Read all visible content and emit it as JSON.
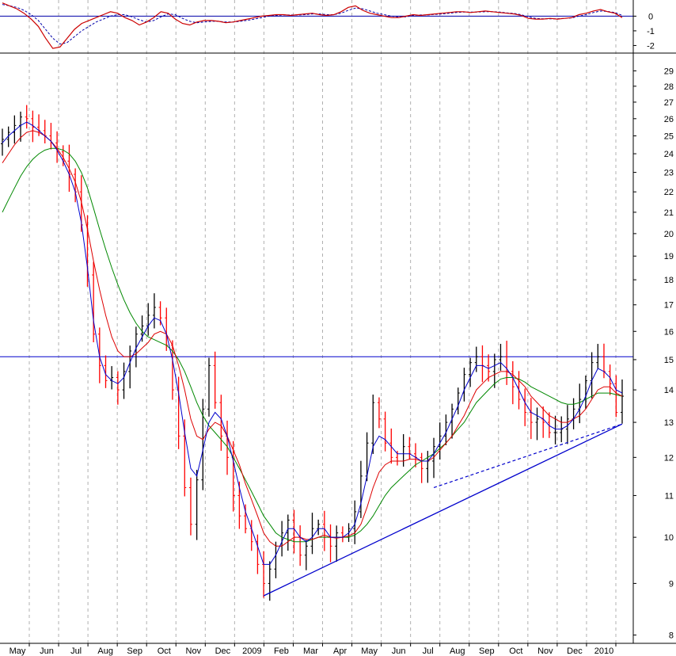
{
  "chart_data": [
    {
      "panel": "oscillator",
      "type": "line",
      "yticks": [
        "0",
        "-1",
        "-2"
      ],
      "ytick_values": [
        0,
        -1,
        -2
      ],
      "ylim": [
        -2.3,
        1.1
      ],
      "zero_line": 0,
      "grid": true,
      "colors": {
        "signal": "#cc0000",
        "trigger": "#0000aa",
        "zero": "#0000aa"
      },
      "series": [
        {
          "values": [
            0.9,
            0.7,
            0.5,
            0.2,
            -0.2,
            -0.7,
            -1.5,
            -2.2,
            -2.1,
            -1.5,
            -0.9,
            -0.5,
            -0.3,
            -0.1,
            0.1,
            0.3,
            0.2,
            -0.1,
            -0.3,
            -0.6,
            -0.4,
            -0.1,
            0.3,
            0.2,
            -0.2,
            -0.5,
            -0.6,
            -0.4,
            -0.3,
            -0.3,
            -0.35,
            -0.45,
            -0.4,
            -0.3,
            -0.2,
            -0.1,
            0.0,
            0.05,
            0.1,
            0.1,
            0.05,
            0.1,
            0.15,
            0.2,
            0.1,
            0.05,
            0.1,
            0.3,
            0.6,
            0.7,
            0.4,
            0.2,
            0.1,
            0.0,
            -0.1,
            -0.1,
            0.0,
            0.1,
            0.05,
            0.1,
            0.15,
            0.2,
            0.25,
            0.3,
            0.3,
            0.25,
            0.3,
            0.35,
            0.3,
            0.25,
            0.2,
            0.15,
            0.05,
            -0.15,
            -0.2,
            -0.2,
            -0.15,
            -0.2,
            -0.15,
            -0.1,
            0.1,
            0.2,
            0.35,
            0.45,
            0.3,
            0.2,
            -0.1
          ]
        },
        {
          "values": [
            0.8,
            0.7,
            0.6,
            0.4,
            0.1,
            -0.3,
            -0.9,
            -1.5,
            -1.9,
            -1.8,
            -1.4,
            -1.0,
            -0.7,
            -0.4,
            -0.2,
            0.0,
            0.1,
            0.1,
            -0.05,
            -0.25,
            -0.4,
            -0.3,
            -0.05,
            0.15,
            0.1,
            -0.15,
            -0.35,
            -0.45,
            -0.4,
            -0.35,
            -0.35,
            -0.4,
            -0.4,
            -0.35,
            -0.28,
            -0.2,
            -0.1,
            0.0,
            0.05,
            0.08,
            0.08,
            0.08,
            0.1,
            0.15,
            0.15,
            0.1,
            0.1,
            0.2,
            0.4,
            0.55,
            0.5,
            0.35,
            0.2,
            0.1,
            0.0,
            -0.05,
            -0.05,
            0.05,
            0.08,
            0.08,
            0.12,
            0.15,
            0.2,
            0.25,
            0.28,
            0.28,
            0.28,
            0.3,
            0.3,
            0.28,
            0.22,
            0.18,
            0.1,
            -0.05,
            -0.15,
            -0.18,
            -0.18,
            -0.18,
            -0.15,
            -0.12,
            0.0,
            0.1,
            0.25,
            0.35,
            0.32,
            0.25,
            0.05
          ]
        }
      ]
    },
    {
      "panel": "price",
      "type": "candlestick",
      "scale": "log",
      "ylim": [
        7.85,
        30.2
      ],
      "yticks": [
        "29",
        "28",
        "27",
        "26",
        "25",
        "24",
        "23",
        "22",
        "21",
        "20",
        "19",
        "18",
        "17",
        "16",
        "15",
        "14",
        "13",
        "12",
        "11",
        "10",
        "9",
        "8"
      ],
      "ytick_values": [
        29,
        28,
        27,
        26,
        25,
        24,
        23,
        22,
        21,
        20,
        19,
        18,
        17,
        16,
        15,
        14,
        13,
        12,
        11,
        10,
        9,
        8
      ],
      "xticks": [
        "May",
        "Jun",
        "Jul",
        "Aug",
        "Sep",
        "Oct",
        "Nov",
        "Dec",
        "2009",
        "Feb",
        "Mar",
        "Apr",
        "May",
        "Jun",
        "Jul",
        "Aug",
        "Sep",
        "Oct",
        "Nov",
        "Dec",
        "2010"
      ],
      "grid": "vertical dashed",
      "colors": {
        "up": "#000000",
        "down": "#ff0000",
        "ma_short": "#0000cc",
        "ma_mid": "#dd0000",
        "ma_long": "#008800",
        "lines": "#0000cc"
      },
      "close": [
        24.8,
        25.2,
        25.6,
        26.1,
        26.0,
        25.5,
        25.3,
        25.0,
        24.6,
        24.1,
        23.6,
        22.9,
        22.0,
        20.4,
        18.2,
        15.9,
        14.8,
        14.3,
        14.4,
        14.0,
        14.6,
        15.3,
        15.9,
        16.2,
        16.6,
        16.9,
        16.5,
        15.5,
        14.0,
        12.6,
        11.2,
        10.3,
        11.4,
        13.4,
        14.8,
        13.6,
        12.6,
        12.0,
        11.0,
        10.5,
        10.2,
        9.9,
        9.4,
        9.0,
        9.3,
        9.8,
        10.1,
        10.4,
        10.0,
        9.6,
        9.8,
        10.2,
        10.3,
        10.0,
        9.8,
        10.1,
        10.0,
        10.2,
        10.6,
        11.5,
        12.4,
        13.6,
        13.1,
        12.4,
        12.0,
        11.9,
        12.3,
        12.1,
        12.0,
        11.7,
        11.9,
        12.3,
        12.6,
        13.0,
        13.4,
        13.9,
        14.5,
        14.9,
        15.1,
        14.8,
        14.6,
        15.0,
        15.1,
        14.6,
        14.1,
        13.7,
        13.3,
        13.0,
        13.1,
        13.0,
        12.7,
        12.7,
        12.8,
        13.1,
        13.4,
        13.7,
        14.3,
        14.9,
        15.1,
        14.6,
        14.2,
        13.3,
        13.8
      ],
      "ma_short": [
        24.6,
        25.0,
        25.3,
        25.6,
        25.8,
        25.6,
        25.3,
        25.0,
        24.7,
        24.2,
        23.6,
        22.9,
        22.0,
        20.5,
        18.5,
        16.4,
        15.1,
        14.5,
        14.3,
        14.2,
        14.4,
        14.9,
        15.4,
        15.8,
        16.2,
        16.5,
        16.4,
        15.9,
        15.0,
        13.9,
        12.7,
        11.7,
        11.5,
        12.2,
        13.0,
        13.3,
        13.1,
        12.6,
        11.9,
        11.2,
        10.6,
        10.2,
        9.8,
        9.4,
        9.4,
        9.6,
        9.9,
        10.2,
        10.2,
        10.0,
        9.9,
        10.0,
        10.2,
        10.2,
        10.0,
        10.0,
        10.0,
        10.1,
        10.3,
        10.8,
        11.5,
        12.3,
        12.6,
        12.5,
        12.3,
        12.1,
        12.1,
        12.1,
        12.0,
        11.9,
        11.9,
        12.1,
        12.4,
        12.7,
        13.1,
        13.5,
        14.0,
        14.4,
        14.8,
        14.8,
        14.7,
        14.8,
        14.9,
        14.7,
        14.4,
        14.0,
        13.6,
        13.3,
        13.2,
        13.1,
        12.9,
        12.8,
        12.8,
        12.9,
        13.1,
        13.4,
        13.8,
        14.3,
        14.7,
        14.6,
        14.4,
        14.0,
        13.9
      ],
      "ma_mid": [
        23.5,
        24.0,
        24.5,
        24.9,
        25.2,
        25.3,
        25.2,
        25.0,
        24.7,
        24.3,
        23.8,
        23.2,
        22.5,
        21.5,
        20.2,
        18.8,
        17.6,
        16.6,
        15.8,
        15.3,
        15.1,
        15.1,
        15.2,
        15.4,
        15.6,
        15.9,
        16.0,
        15.9,
        15.5,
        14.8,
        14.0,
        13.1,
        12.6,
        12.5,
        12.8,
        13.0,
        12.9,
        12.6,
        12.2,
        11.8,
        11.3,
        10.9,
        10.5,
        10.1,
        9.9,
        9.8,
        9.8,
        9.9,
        10.0,
        10.0,
        9.95,
        9.95,
        10.0,
        10.05,
        10.0,
        9.98,
        10.0,
        10.03,
        10.1,
        10.3,
        10.7,
        11.2,
        11.6,
        11.8,
        11.9,
        11.9,
        11.9,
        11.95,
        11.95,
        11.9,
        11.9,
        12.0,
        12.2,
        12.4,
        12.6,
        12.9,
        13.2,
        13.6,
        14.0,
        14.2,
        14.4,
        14.5,
        14.6,
        14.6,
        14.5,
        14.3,
        14.1,
        13.8,
        13.6,
        13.4,
        13.2,
        13.1,
        13.0,
        13.0,
        13.1,
        13.2,
        13.4,
        13.7,
        14.0,
        14.1,
        14.1,
        13.9,
        13.8
      ],
      "ma_long": [
        21.0,
        21.6,
        22.2,
        22.8,
        23.3,
        23.7,
        24.0,
        24.2,
        24.3,
        24.3,
        24.2,
        24.0,
        23.6,
        23.0,
        22.2,
        21.2,
        20.2,
        19.3,
        18.5,
        17.8,
        17.2,
        16.7,
        16.3,
        16.0,
        15.8,
        15.7,
        15.6,
        15.5,
        15.3,
        15.0,
        14.6,
        14.1,
        13.6,
        13.2,
        12.9,
        12.7,
        12.5,
        12.3,
        12.0,
        11.7,
        11.4,
        11.1,
        10.8,
        10.5,
        10.3,
        10.1,
        10.0,
        9.95,
        9.9,
        9.9,
        9.9,
        9.95,
        10.0,
        10.0,
        10.0,
        10.0,
        10.0,
        10.0,
        10.05,
        10.15,
        10.3,
        10.5,
        10.75,
        11.0,
        11.2,
        11.35,
        11.5,
        11.65,
        11.8,
        11.9,
        12.0,
        12.1,
        12.25,
        12.4,
        12.6,
        12.8,
        13.0,
        13.3,
        13.6,
        13.8,
        14.0,
        14.2,
        14.35,
        14.4,
        14.4,
        14.35,
        14.25,
        14.1,
        14.0,
        13.9,
        13.8,
        13.7,
        13.6,
        13.55,
        13.55,
        13.6,
        13.7,
        13.8,
        13.9,
        13.9,
        13.9,
        13.85,
        13.8
      ],
      "resistance": 15.1,
      "trendline_solid": [
        [
          43,
          8.75
        ],
        [
          102,
          12.95
        ]
      ],
      "trendline_dashed": [
        [
          71,
          11.2
        ],
        [
          102,
          12.95
        ]
      ]
    }
  ]
}
